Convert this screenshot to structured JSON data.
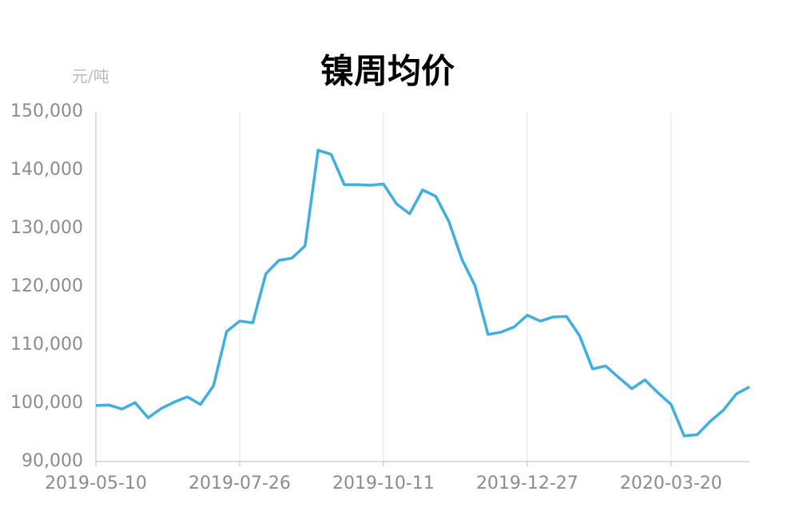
{
  "chart_data": {
    "type": "line",
    "title": "镍周均价",
    "y_label": "元/吨",
    "categories": [
      "2019-05-10",
      null,
      null,
      null,
      null,
      null,
      null,
      null,
      null,
      null,
      null,
      "2019-07-26",
      null,
      null,
      null,
      null,
      null,
      null,
      null,
      null,
      null,
      null,
      "2019-10-11",
      null,
      null,
      null,
      null,
      null,
      null,
      null,
      null,
      null,
      null,
      "2019-12-27",
      null,
      null,
      null,
      null,
      null,
      null,
      null,
      null,
      null,
      null,
      "2020-03-20",
      null,
      null,
      null,
      null,
      null,
      null
    ],
    "series": [
      {
        "name": "镍周均价",
        "color": "#41aee0",
        "values": [
          99600,
          99700,
          99000,
          100100,
          97500,
          99100,
          100200,
          101100,
          99800,
          103000,
          112300,
          114100,
          113800,
          122200,
          124500,
          124900,
          127000,
          143400,
          142700,
          137500,
          137500,
          137400,
          137600,
          134200,
          132500,
          136600,
          135500,
          131200,
          124700,
          120200,
          111800,
          112200,
          113100,
          115100,
          114100,
          114800,
          114900,
          111600,
          105900,
          106400,
          104400,
          102500,
          104000,
          101800,
          99800,
          94400,
          94600,
          96900,
          98800,
          101600,
          102800
        ]
      }
    ],
    "ylim": [
      90000,
      150000
    ],
    "yticks": [
      {
        "value": 90000,
        "label": "90,000"
      },
      {
        "value": 100000,
        "label": "100,000"
      },
      {
        "value": 110000,
        "label": "110,000"
      },
      {
        "value": 120000,
        "label": "120,000"
      },
      {
        "value": 130000,
        "label": "130,000"
      },
      {
        "value": 140000,
        "label": "140,000"
      },
      {
        "value": 150000,
        "label": "150,000"
      }
    ],
    "grid": "x"
  }
}
